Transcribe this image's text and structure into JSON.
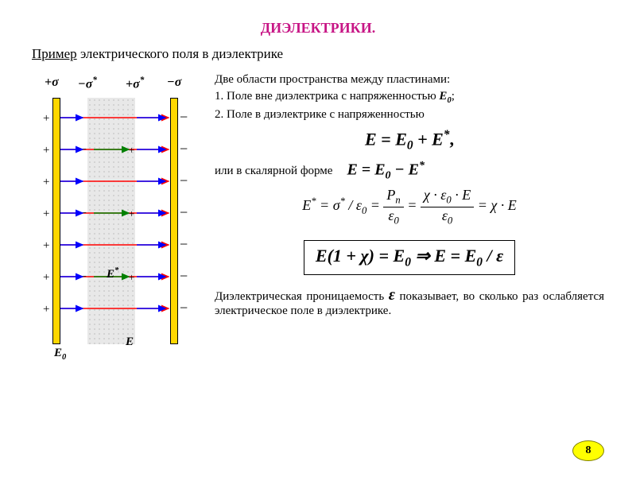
{
  "title": {
    "text": "ДИЭЛЕКТРИКИ.",
    "color": "#c71585",
    "fontsize": 18
  },
  "subtitle": {
    "underlined": "Пример",
    "rest": " электрического поля в диэлектрике"
  },
  "diagram": {
    "plate_fill": "#ffd700",
    "plate_border": "#000000",
    "dielectric_fill": "#e8e8e8",
    "arrow_red": "#ff0000",
    "arrow_green": "#008000",
    "arrow_blue": "#0000ff",
    "sigma_labels": {
      "left_plate": "+σ",
      "diel_left": "−σ",
      "diel_left_sup": "*",
      "diel_right": "+σ",
      "diel_right_sup": "*",
      "right_plate": "−σ"
    },
    "row_count": 7,
    "green_rows": [
      1,
      3,
      5
    ],
    "E0_label": "E",
    "E0_sub": "0",
    "E_label": "E",
    "Estar_label": "E",
    "Estar_sup": "*"
  },
  "text": {
    "regions_intro": "Две области пространства между пластинами:",
    "line1a": "1. Поле вне диэлектрика с напряженностью ",
    "line1_E": "E",
    "line1_sub": "0",
    "line1_end": ";",
    "line2": "2. Поле в диэлектрике с напряженностью",
    "vector_eq_left": "E = E",
    "vector_eq_sub1": "0",
    "vector_eq_mid": " + E",
    "vector_eq_sup": "*",
    "vector_eq_comma": ",",
    "scalar_intro": "или в скалярной форме",
    "scalar_eq_left": "E = E",
    "scalar_eq_sub": "0",
    "scalar_eq_mid": " − E",
    "scalar_eq_sup": "*",
    "deriv": {
      "Estar": "E",
      "star": "*",
      "eq": " = σ",
      "star2": "*",
      "slash": " / ε",
      "sub0a": "0",
      "eq2": " = ",
      "Pn_num": "P",
      "Pn_sub": "n",
      "eps_den": "ε",
      "eps_den_sub": "0",
      "eq3": " = ",
      "chi_eps_num": "χ · ε",
      "chi_eps_sub": "0",
      "dot_E": " · E",
      "eps_den2": "ε",
      "eps_den2_sub": "0",
      "eq4": " = χ · E"
    },
    "boxed": {
      "part1": "E(1 + χ) = E",
      "sub1": "0",
      "arrow": " ⇒ E = E",
      "sub2": "0",
      "part2": " / ε"
    },
    "conclusion_a": "Диэлектрическая проницаемость ",
    "conclusion_eps": "ε",
    "conclusion_b": " показывает, во сколько раз ослабляется электрическое поле в диэлектрике."
  },
  "page_number": "8",
  "page_badge": {
    "bg": "#ffff00",
    "border": "#808000"
  }
}
